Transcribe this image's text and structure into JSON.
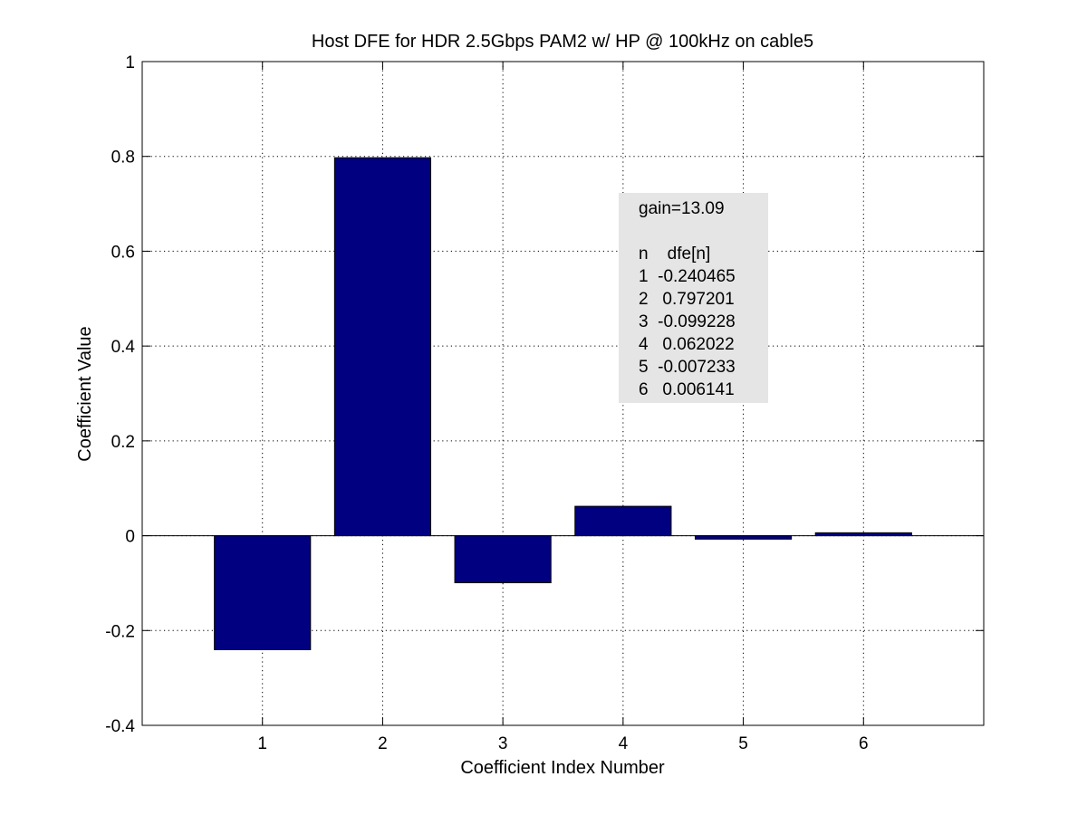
{
  "chart_data": {
    "type": "bar",
    "title": "Host DFE for HDR 2.5Gbps PAM2 w/ HP @ 100kHz on cable5",
    "xlabel": "Coefficient Index Number",
    "ylabel": "Coefficient Value",
    "categories": [
      "1",
      "2",
      "3",
      "4",
      "5",
      "6"
    ],
    "values": [
      -0.240465,
      0.797201,
      -0.099228,
      0.062022,
      -0.007233,
      0.006141
    ],
    "xlim": [
      0,
      7
    ],
    "ylim": [
      -0.4,
      1
    ],
    "yticks": [
      "-0.4",
      "-0.2",
      "0",
      "0.2",
      "0.4",
      "0.6",
      "0.8",
      "1"
    ],
    "grid": true,
    "bar_color": "#000080",
    "annotation": {
      "background": "#e5e5e5",
      "lines": [
        "gain=13.09",
        "",
        "n    dfe[n]",
        "1  -0.240465",
        "2   0.797201",
        "3  -0.099228",
        "4   0.062022",
        "5  -0.007233",
        "6   0.006141"
      ]
    }
  }
}
